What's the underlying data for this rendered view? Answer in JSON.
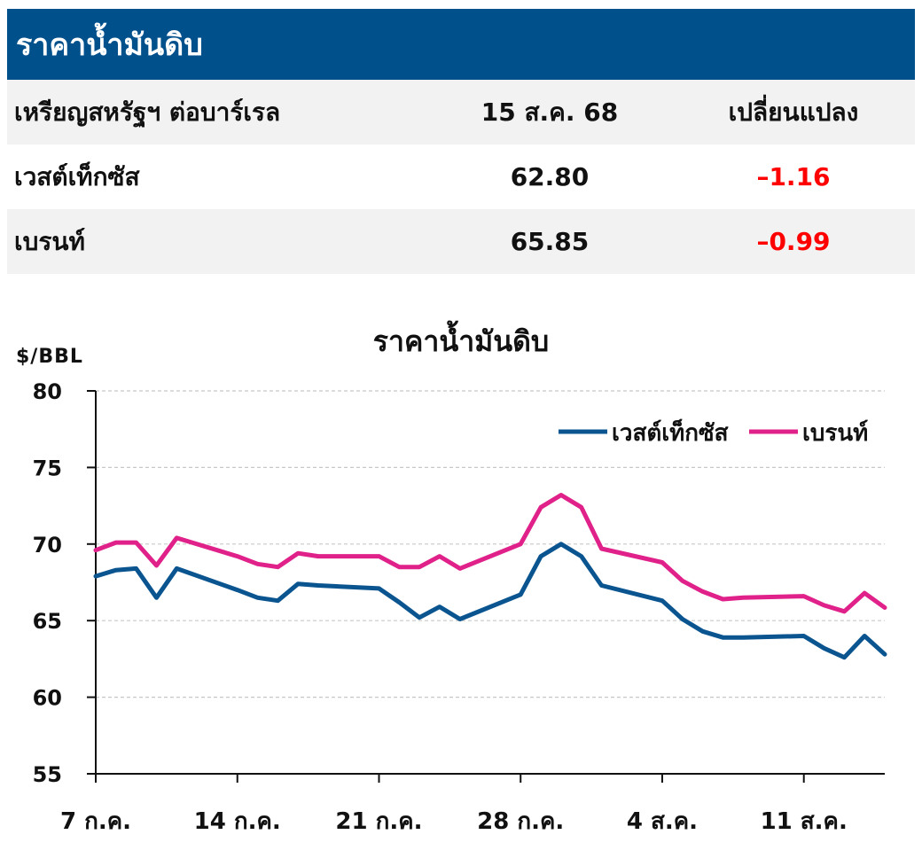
{
  "table": {
    "title": "ราคาน้ำมันดิบ",
    "headers": [
      "เหรียญสหรัฐฯ ต่อบาร์เรล",
      "15 ส.ค. 68",
      "เปลี่ยนแปลง"
    ],
    "rows": [
      {
        "label": "เวสต์เท็กซัส",
        "value": "62.80",
        "change": "–1.16"
      },
      {
        "label": "เบรนท์",
        "value": "65.85",
        "change": "–0.99"
      }
    ],
    "colors": {
      "header_bg": "#00508c",
      "row_shade": "#f2f2f2",
      "negative": "#ff0000"
    }
  },
  "chart_data": {
    "type": "line",
    "title": "ราคาน้ำมันดิบ",
    "ylabel": "$/BBL",
    "ylim": [
      55,
      80
    ],
    "yticks": [
      55,
      60,
      65,
      70,
      75,
      80
    ],
    "xlim": [
      0,
      39
    ],
    "x_ticks": [
      {
        "x": 0,
        "label": "7 ก.ค."
      },
      {
        "x": 7,
        "label": "14 ก.ค."
      },
      {
        "x": 14,
        "label": "21 ก.ค."
      },
      {
        "x": 21,
        "label": "28 ก.ค."
      },
      {
        "x": 28,
        "label": "4 ส.ค."
      },
      {
        "x": 35,
        "label": "11 ส.ค."
      }
    ],
    "grid": true,
    "legend_position": "top-right",
    "series": [
      {
        "name": "เวสต์เท็กซัส",
        "color": "#0a5490",
        "points": [
          [
            0,
            67.9
          ],
          [
            1,
            68.3
          ],
          [
            2,
            68.4
          ],
          [
            3,
            66.5
          ],
          [
            4,
            68.4
          ],
          [
            7,
            67.0
          ],
          [
            8,
            66.5
          ],
          [
            9,
            66.3
          ],
          [
            10,
            67.4
          ],
          [
            11,
            67.3
          ],
          [
            14,
            67.1
          ],
          [
            15,
            66.2
          ],
          [
            16,
            65.2
          ],
          [
            17,
            65.9
          ],
          [
            18,
            65.1
          ],
          [
            21,
            66.7
          ],
          [
            22,
            69.2
          ],
          [
            23,
            70.0
          ],
          [
            24,
            69.2
          ],
          [
            25,
            67.3
          ],
          [
            28,
            66.3
          ],
          [
            29,
            65.1
          ],
          [
            30,
            64.3
          ],
          [
            31,
            63.9
          ],
          [
            32,
            63.9
          ],
          [
            35,
            64.0
          ],
          [
            36,
            63.2
          ],
          [
            37,
            62.6
          ],
          [
            38,
            64.0
          ],
          [
            39,
            62.8
          ]
        ]
      },
      {
        "name": "เบรนท์",
        "color": "#e0218a",
        "points": [
          [
            0,
            69.6
          ],
          [
            1,
            70.1
          ],
          [
            2,
            70.1
          ],
          [
            3,
            68.6
          ],
          [
            4,
            70.4
          ],
          [
            7,
            69.2
          ],
          [
            8,
            68.7
          ],
          [
            9,
            68.5
          ],
          [
            10,
            69.4
          ],
          [
            11,
            69.2
          ],
          [
            14,
            69.2
          ],
          [
            15,
            68.5
          ],
          [
            16,
            68.5
          ],
          [
            17,
            69.2
          ],
          [
            18,
            68.4
          ],
          [
            21,
            70.0
          ],
          [
            22,
            72.4
          ],
          [
            23,
            73.2
          ],
          [
            24,
            72.4
          ],
          [
            25,
            69.7
          ],
          [
            28,
            68.8
          ],
          [
            29,
            67.6
          ],
          [
            30,
            66.9
          ],
          [
            31,
            66.4
          ],
          [
            32,
            66.5
          ],
          [
            35,
            66.6
          ],
          [
            36,
            66.0
          ],
          [
            37,
            65.6
          ],
          [
            38,
            66.8
          ],
          [
            39,
            65.85
          ]
        ]
      }
    ]
  }
}
